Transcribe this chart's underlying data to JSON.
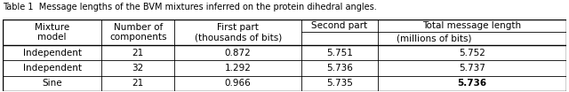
{
  "caption": "Table 1  Message lengths of the BVM mixtures inferred on the protein dihedral angles.",
  "rows": [
    [
      "Independent",
      "21",
      "0.872",
      "5.751",
      "5.752"
    ],
    [
      "Independent",
      "32",
      "1.292",
      "5.736",
      "5.737"
    ],
    [
      "Sine",
      "21",
      "0.966",
      "5.735",
      "5.736"
    ]
  ],
  "bold_cells": [
    [
      2,
      4
    ]
  ],
  "background_color": "#ffffff",
  "font_size": 7.5,
  "caption_fontsize": 7.0
}
